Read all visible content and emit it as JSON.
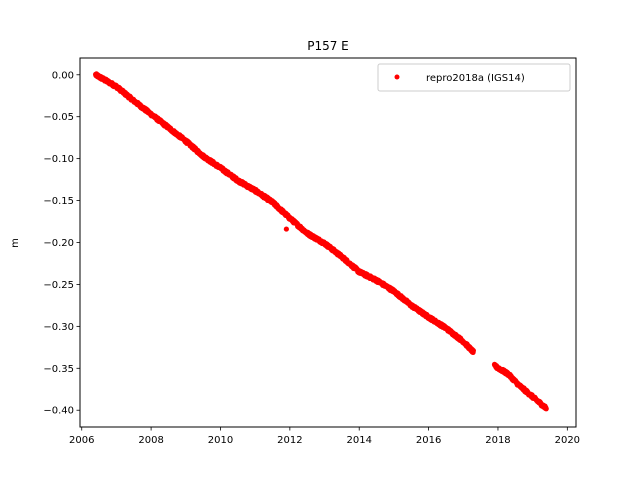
{
  "chart_data": {
    "type": "scatter",
    "title": "P157 E",
    "xlabel": "",
    "ylabel": "m",
    "xlim": [
      2005.95,
      2020.25
    ],
    "ylim": [
      -0.42,
      0.02
    ],
    "x_ticks": [
      2006,
      2008,
      2010,
      2012,
      2014,
      2016,
      2018,
      2020
    ],
    "y_ticks": [
      0.0,
      -0.05,
      -0.1,
      -0.15,
      -0.2,
      -0.25,
      -0.3,
      -0.35,
      -0.4
    ],
    "x_tick_labels": [
      "2006",
      "2008",
      "2010",
      "2012",
      "2014",
      "2016",
      "2018",
      "2020"
    ],
    "y_tick_labels": [
      "0.00",
      "−0.05",
      "−0.10",
      "−0.15",
      "−0.20",
      "−0.25",
      "−0.30",
      "−0.35",
      "−0.40"
    ],
    "grid": false,
    "legend_position": "top-right",
    "marker_color": "#ff0000",
    "series": [
      {
        "name": "repro2018a (IGS14)",
        "color": "#ff0000",
        "segments": [
          {
            "x": [
              2006.4,
              2007.0,
              2007.5,
              2008.0,
              2008.5,
              2009.0,
              2009.5,
              2010.0,
              2010.5,
              2011.0,
              2011.5,
              2012.0,
              2012.5,
              2013.0,
              2013.5,
              2014.0,
              2014.5,
              2015.0,
              2015.5,
              2016.0,
              2016.5,
              2017.0,
              2017.3
            ],
            "y": [
              0.0,
              -0.014,
              -0.031,
              -0.047,
              -0.063,
              -0.079,
              -0.097,
              -0.111,
              -0.126,
              -0.138,
              -0.152,
              -0.171,
              -0.189,
              -0.201,
              -0.217,
              -0.235,
              -0.245,
              -0.258,
              -0.275,
              -0.289,
              -0.302,
              -0.318,
              -0.331
            ]
          },
          {
            "x": [
              2017.9,
              2018.3,
              2018.6,
              2019.0,
              2019.4
            ],
            "y": [
              -0.347,
              -0.357,
              -0.37,
              -0.384,
              -0.398
            ]
          }
        ],
        "outliers": [
          {
            "x": 2011.9,
            "y": -0.184
          }
        ]
      }
    ]
  }
}
